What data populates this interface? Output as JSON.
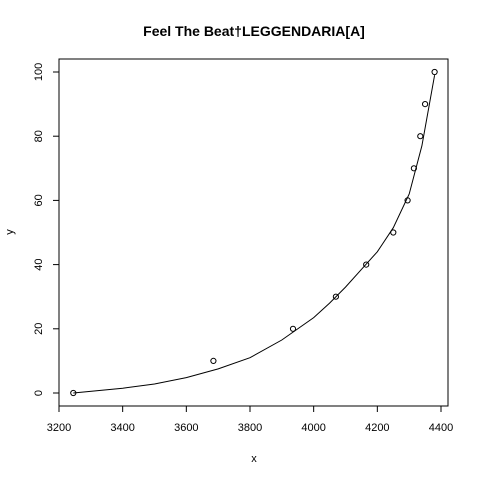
{
  "chart_data": {
    "type": "scatter",
    "title": "Feel The Beat†LEGGENDARIA[A]",
    "xlabel": "x",
    "ylabel": "y",
    "xlim": [
      3200,
      4400
    ],
    "ylim": [
      0,
      100
    ],
    "x_ticks": [
      3200,
      3400,
      3600,
      3800,
      4000,
      4200,
      4400
    ],
    "y_ticks": [
      0,
      20,
      40,
      60,
      80,
      100
    ],
    "grid": false,
    "legend": "none",
    "points": {
      "x": [
        3245,
        3685,
        3935,
        4070,
        4165,
        4250,
        4295,
        4315,
        4335,
        4350,
        4380
      ],
      "y": [
        0,
        10,
        20,
        30,
        40,
        50,
        60,
        70,
        80,
        90,
        100
      ]
    },
    "fit_curve": {
      "x": [
        3245,
        3400,
        3500,
        3600,
        3700,
        3800,
        3900,
        4000,
        4050,
        4100,
        4150,
        4200,
        4250,
        4300,
        4340,
        4380
      ],
      "y": [
        0,
        1.5,
        2.8,
        4.8,
        7.5,
        11,
        16.5,
        23.5,
        28,
        33,
        38.5,
        44,
        51.5,
        62,
        77,
        99
      ]
    },
    "colors": {
      "line": "#000000",
      "points": "#000000",
      "background": "#ffffff"
    }
  }
}
